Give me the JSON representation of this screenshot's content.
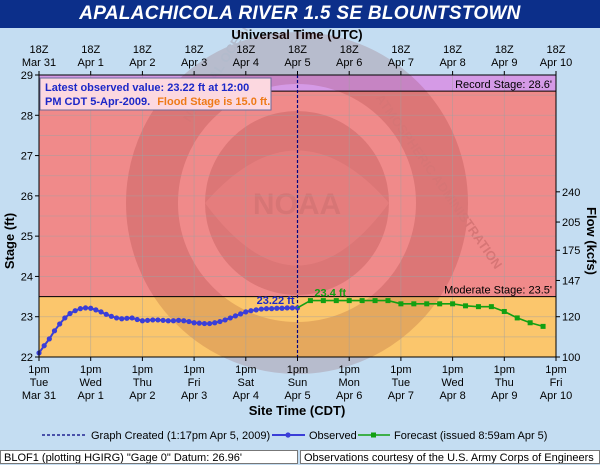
{
  "title": "APALACHICOLA RIVER 1.5 SE BLOUNTSTOWN",
  "colors": {
    "title_bg": "#0c2f8a",
    "background": "#c4ddf2",
    "record_band": "#d59ae6",
    "moderate_band": "#f08a8a",
    "normal_band": "#fbc66c",
    "observed": "#3a3ed8",
    "forecast": "#12a012",
    "annotation_blue": "#1c28c8",
    "annotation_orange": "#ee7a18"
  },
  "chart_data": {
    "type": "line",
    "top_axis_label": "Universal Time (UTC)",
    "top_ticks": [
      {
        "hour": "18Z",
        "date": "Mar 31"
      },
      {
        "hour": "18Z",
        "date": "Apr 1"
      },
      {
        "hour": "18Z",
        "date": "Apr 2"
      },
      {
        "hour": "18Z",
        "date": "Apr 3"
      },
      {
        "hour": "18Z",
        "date": "Apr 4"
      },
      {
        "hour": "18Z",
        "date": "Apr 5"
      },
      {
        "hour": "18Z",
        "date": "Apr 6"
      },
      {
        "hour": "18Z",
        "date": "Apr 7"
      },
      {
        "hour": "18Z",
        "date": "Apr 8"
      },
      {
        "hour": "18Z",
        "date": "Apr 9"
      },
      {
        "hour": "18Z",
        "date": "Apr 10"
      }
    ],
    "xlabel": "Site Time (CDT)",
    "bottom_ticks": [
      {
        "time": "1pm",
        "day": "Tue",
        "date": "Mar 31"
      },
      {
        "time": "1pm",
        "day": "Wed",
        "date": "Apr 1"
      },
      {
        "time": "1pm",
        "day": "Thu",
        "date": "Apr 2"
      },
      {
        "time": "1pm",
        "day": "Fri",
        "date": "Apr 3"
      },
      {
        "time": "1pm",
        "day": "Sat",
        "date": "Apr 4"
      },
      {
        "time": "1pm",
        "day": "Sun",
        "date": "Apr 5"
      },
      {
        "time": "1pm",
        "day": "Mon",
        "date": "Apr 6"
      },
      {
        "time": "1pm",
        "day": "Tue",
        "date": "Apr 7"
      },
      {
        "time": "1pm",
        "day": "Wed",
        "date": "Apr 8"
      },
      {
        "time": "1pm",
        "day": "Thu",
        "date": "Apr 9"
      },
      {
        "time": "1pm",
        "day": "Fri",
        "date": "Apr 10"
      }
    ],
    "x_unit": "days since 1pm CDT Mar 31",
    "xlim": [
      0,
      10
    ],
    "ylabel": "Stage (ft)",
    "ylim": [
      22,
      29
    ],
    "y_ticks": [
      22,
      23,
      24,
      25,
      26,
      27,
      28,
      29
    ],
    "y2label": "Flow (kcfs)",
    "y2_ticks": [
      {
        "label": "100",
        "stage": 22.0
      },
      {
        "label": "120",
        "stage": 23.0
      },
      {
        "label": "147",
        "stage": 23.9
      },
      {
        "label": "175",
        "stage": 24.65
      },
      {
        "label": "205",
        "stage": 25.35
      },
      {
        "label": "240",
        "stage": 26.1
      }
    ],
    "grid": true,
    "stage_bands": [
      {
        "name": "Record Stage",
        "label": "Record Stage: 28.6'",
        "from": 28.6,
        "to": 29
      },
      {
        "name": "Moderate Stage",
        "label": "Moderate Stage: 23.5'",
        "from": 23.5,
        "to": 28.6
      },
      {
        "name": "Normal",
        "label": "",
        "from": 22,
        "to": 23.5
      }
    ],
    "info_box": {
      "line1": "Latest observed value: 23.22 ft at 12:00",
      "line2a": "PM CDT 5-Apr-2009.",
      "line2b": "Flood Stage is 15.0 ft."
    },
    "graph_created_x": 5.0,
    "series": [
      {
        "name": "Observed",
        "x": [
          0,
          0.1,
          0.2,
          0.3,
          0.4,
          0.5,
          0.6,
          0.7,
          0.8,
          0.9,
          1.0,
          1.1,
          1.2,
          1.3,
          1.4,
          1.5,
          1.6,
          1.7,
          1.8,
          1.9,
          2.0,
          2.1,
          2.2,
          2.3,
          2.4,
          2.5,
          2.6,
          2.7,
          2.8,
          2.9,
          3.0,
          3.1,
          3.2,
          3.3,
          3.4,
          3.5,
          3.6,
          3.7,
          3.8,
          3.9,
          4.0,
          4.1,
          4.2,
          4.3,
          4.4,
          4.5,
          4.6,
          4.7,
          4.8,
          4.9,
          5.0
        ],
        "values": [
          22.1,
          22.28,
          22.45,
          22.65,
          22.82,
          22.97,
          23.08,
          23.15,
          23.2,
          23.22,
          23.21,
          23.17,
          23.12,
          23.06,
          23.01,
          22.97,
          22.95,
          22.96,
          22.97,
          22.93,
          22.9,
          22.91,
          22.92,
          22.92,
          22.91,
          22.9,
          22.9,
          22.91,
          22.9,
          22.88,
          22.85,
          22.84,
          22.83,
          22.83,
          22.85,
          22.88,
          22.92,
          22.97,
          23.02,
          23.07,
          23.12,
          23.15,
          23.17,
          23.19,
          23.2,
          23.2,
          23.21,
          23.21,
          23.22,
          23.22,
          23.22
        ],
        "end_label": "23.22 ft"
      },
      {
        "name": "Forecast",
        "x": [
          5.0,
          5.25,
          5.5,
          5.75,
          6.0,
          6.25,
          6.5,
          6.75,
          7.0,
          7.25,
          7.5,
          7.75,
          8.0,
          8.25,
          8.5,
          8.75,
          9.0,
          9.25,
          9.5,
          9.75
        ],
        "values": [
          23.22,
          23.4,
          23.4,
          23.4,
          23.4,
          23.4,
          23.4,
          23.4,
          23.32,
          23.32,
          23.32,
          23.32,
          23.32,
          23.27,
          23.25,
          23.25,
          23.13,
          22.97,
          22.85,
          22.76
        ],
        "peak_label": "23.4 ft"
      }
    ],
    "legend": {
      "created": "Graph Created (1:17pm Apr 5, 2009)",
      "observed": "Observed",
      "forecast": "Forecast (issued 8:59am Apr 5)"
    }
  },
  "watermark": {
    "agency": "NOAA",
    "ring_left": "NATIONAL OCEANIC AND",
    "ring_right": "ATMOSPHERIC ADMINISTRATION"
  },
  "footer": {
    "left": "BLOF1 (plotting HGIRG)  \"Gage 0\" Datum: 26.96'",
    "right": "Observations courtesy of the  U.S. Army Corps of Engineers"
  }
}
